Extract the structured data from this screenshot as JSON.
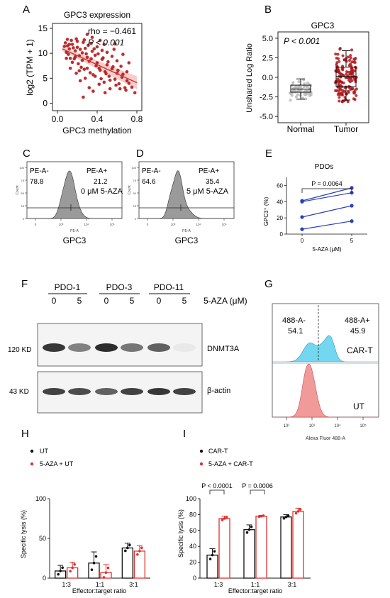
{
  "panels": {
    "A": {
      "letter": "A",
      "title": "GPC3 expression",
      "xlabel": "GPC3 methylation",
      "ylabel": "log2 (TPM + 1)",
      "rho": "rho = −0.461",
      "p": "P < 0.001",
      "xticks": [
        "0.0",
        "0.4",
        "0.8"
      ],
      "yticks": [
        "0",
        "5",
        "10",
        "15"
      ],
      "colors": {
        "points": "#b2181b",
        "fit": "#c0392b",
        "band": "#f2b6b6"
      },
      "chart_data": {
        "type": "scatter",
        "xlim": [
          -0.05,
          0.85
        ],
        "ylim": [
          -1.5,
          16
        ],
        "fit_line": {
          "x": [
            0.05,
            0.8
          ],
          "y": [
            10.9,
            4.1
          ]
        },
        "points": [
          [
            0.08,
            12.1
          ],
          [
            0.1,
            11.5
          ],
          [
            0.12,
            10.9
          ],
          [
            0.09,
            10.2
          ],
          [
            0.15,
            11.8
          ],
          [
            0.18,
            10.5
          ],
          [
            0.11,
            9.8
          ],
          [
            0.2,
            11.2
          ],
          [
            0.22,
            9.5
          ],
          [
            0.14,
            12.6
          ],
          [
            0.25,
            10.1
          ],
          [
            0.17,
            8.9
          ],
          [
            0.28,
            11.0
          ],
          [
            0.3,
            9.2
          ],
          [
            0.13,
            9.0
          ],
          [
            0.32,
            8.4
          ],
          [
            0.35,
            10.4
          ],
          [
            0.21,
            7.9
          ],
          [
            0.38,
            9.6
          ],
          [
            0.4,
            8.1
          ],
          [
            0.24,
            7.2
          ],
          [
            0.42,
            7.0
          ],
          [
            0.45,
            8.8
          ],
          [
            0.27,
            6.8
          ],
          [
            0.48,
            6.3
          ],
          [
            0.5,
            7.7
          ],
          [
            0.33,
            6.1
          ],
          [
            0.52,
            5.4
          ],
          [
            0.55,
            6.9
          ],
          [
            0.36,
            5.7
          ],
          [
            0.58,
            4.8
          ],
          [
            0.6,
            6.0
          ],
          [
            0.44,
            4.9
          ],
          [
            0.62,
            3.9
          ],
          [
            0.65,
            5.2
          ],
          [
            0.47,
            4.2
          ],
          [
            0.68,
            3.1
          ],
          [
            0.7,
            4.5
          ],
          [
            0.78,
            2.1
          ],
          [
            0.16,
            11.1
          ],
          [
            0.19,
            12.9
          ],
          [
            0.23,
            10.8
          ],
          [
            0.26,
            12.2
          ],
          [
            0.29,
            9.9
          ],
          [
            0.31,
            11.6
          ],
          [
            0.34,
            8.9
          ],
          [
            0.37,
            10.9
          ],
          [
            0.39,
            7.5
          ],
          [
            0.41,
            9.9
          ],
          [
            0.43,
            6.6
          ],
          [
            0.46,
            9.1
          ],
          [
            0.49,
            5.9
          ],
          [
            0.51,
            8.3
          ],
          [
            0.53,
            4.6
          ],
          [
            0.56,
            7.3
          ],
          [
            0.59,
            3.6
          ],
          [
            0.61,
            6.6
          ],
          [
            0.63,
            2.9
          ],
          [
            0.66,
            5.8
          ],
          [
            0.69,
            2.6
          ],
          [
            0.72,
            4.0
          ],
          [
            0.12,
            11.8
          ],
          [
            0.1,
            12.8
          ],
          [
            0.07,
            11.4
          ],
          [
            0.2,
            12.4
          ],
          [
            0.27,
            12.7
          ],
          [
            0.18,
            9.3
          ],
          [
            0.25,
            8.6
          ],
          [
            0.34,
            12.0
          ],
          [
            0.4,
            11.3
          ],
          [
            0.3,
            7.0
          ],
          [
            0.22,
            6.5
          ],
          [
            0.45,
            10.6
          ],
          [
            0.55,
            9.4
          ],
          [
            0.6,
            8.5
          ],
          [
            0.5,
            10.2
          ],
          [
            0.38,
            5.4
          ],
          [
            0.28,
            5.0
          ],
          [
            0.42,
            3.8
          ],
          [
            0.53,
            2.9
          ],
          [
            0.64,
            7.4
          ],
          [
            0.7,
            6.3
          ],
          [
            0.75,
            3.2
          ],
          [
            0.15,
            8.2
          ],
          [
            0.32,
            3.1
          ],
          [
            0.47,
            11.8
          ],
          [
            0.57,
            10.8
          ],
          [
            0.19,
            6.0
          ],
          [
            0.23,
            4.5
          ],
          [
            0.36,
            2.4
          ],
          [
            0.26,
            1.2
          ],
          [
            0.13,
            7.0
          ],
          [
            0.09,
            9.0
          ],
          [
            0.35,
            13.2
          ],
          [
            0.43,
            12.6
          ],
          [
            0.58,
            11.9
          ],
          [
            0.66,
            9.8
          ],
          [
            0.72,
            8.1
          ],
          [
            0.48,
            2.1
          ],
          [
            0.3,
            13.8
          ]
        ]
      }
    },
    "B": {
      "letter": "B",
      "title": "GPC3",
      "p": "P < 0.001",
      "ylabel": "Unshared Log Ratio",
      "categories": [
        "Normal",
        "Tumor"
      ],
      "yticks": [
        "5.0",
        "2.5",
        "0.0",
        "-2.5",
        "-5.0"
      ],
      "colors": {
        "normal": "#b8b8b8",
        "tumor": "#b2181b"
      },
      "chart_data": {
        "type": "box",
        "categories": [
          "Normal",
          "Tumor"
        ],
        "ylim": [
          -5.8,
          5.8
        ],
        "boxes": [
          {
            "name": "Normal",
            "q1": -1.9,
            "median": -1.5,
            "q3": -1.0,
            "whisker_low": -2.8,
            "whisker_high": -0.2
          },
          {
            "name": "Tumor",
            "q1": -1.2,
            "median": 0.1,
            "q3": 1.3,
            "whisker_low": -2.9,
            "whisker_high": 3.4
          }
        ]
      }
    },
    "C": {
      "letter": "C",
      "gate_left": "PE-A-",
      "gate_right": "PE-A+",
      "val_left": "78.8",
      "val_right": "21.2",
      "treatment": "0 μM 5-AZA",
      "xlabel": "GPC3",
      "axis_label": "PE-A",
      "count_label": "Count",
      "yticks": [
        "0",
        "25",
        "50",
        "75",
        "100"
      ],
      "xticks": [
        "0",
        "10³",
        "10⁴",
        "10⁵"
      ]
    },
    "D": {
      "letter": "D",
      "gate_left": "PE-A-",
      "gate_right": "PE-A+",
      "val_left": "64.6",
      "val_right": "35.4",
      "treatment": "5 μM 5-AZA",
      "xlabel": "GPC3",
      "axis_label": "PE-A",
      "count_label": "Count",
      "yticks": [
        "0",
        "25",
        "50",
        "75",
        "100"
      ],
      "xticks": [
        "0",
        "10³",
        "10⁴",
        "10⁵"
      ]
    },
    "E": {
      "letter": "E",
      "title": "PDOs",
      "p": "P = 0.0064",
      "ylabel": "GPC3⁺ (%)",
      "xlabel": "5-AZA (μM)",
      "xticks": [
        "0",
        "5"
      ],
      "yticks": [
        "0",
        "20",
        "40",
        "60"
      ],
      "colors": {
        "line": "#2a3fbf"
      },
      "chart_data": {
        "type": "line",
        "x": [
          "0",
          "5"
        ],
        "ylim": [
          0,
          70
        ],
        "series": [
          {
            "values": [
              41,
              57
            ]
          },
          {
            "values": [
              40,
              51
            ]
          },
          {
            "values": [
              21,
              35
            ]
          },
          {
            "values": [
              6,
              16
            ]
          }
        ]
      }
    },
    "F": {
      "letter": "F",
      "groups": [
        "PDO-1",
        "PDO-3",
        "PDO-11"
      ],
      "doses": [
        "0",
        "5",
        "0",
        "5",
        "0",
        "5"
      ],
      "treatment": "5-AZA (μM)",
      "bands": [
        {
          "kd": "120 KD",
          "protein": "DNMT3A"
        },
        {
          "kd": "43 KD",
          "protein": "β-actin"
        }
      ]
    },
    "G": {
      "letter": "G",
      "gate_left": "488-A-",
      "val_left": "54.1",
      "gate_right": "488-A+",
      "val_right": "45.9",
      "top_label": "CAR-T",
      "bottom_label": "UT",
      "xlabel": "Alexa Fluor 488-A",
      "colors": {
        "cart": "#5bd0ec",
        "ut": "#ee8f8f"
      }
    },
    "H": {
      "letter": "H",
      "legend": [
        "UT",
        "5-AZA + UT"
      ],
      "ylabel": "Specific lysis (%)",
      "xlabel": "Effector:target ratio",
      "yticks": [
        "0",
        "50",
        "100"
      ],
      "categories": [
        "1:3",
        "1:1",
        "3:1"
      ],
      "colors": {
        "ut": "#111111",
        "aza": "#e0302f"
      },
      "chart_data": {
        "type": "bar",
        "categories": [
          "1:3",
          "1:1",
          "3:1"
        ],
        "ylim": [
          0,
          100
        ],
        "series": [
          {
            "name": "UT",
            "values": [
              9,
              19,
              38
            ],
            "errors": [
              7,
              14,
              6
            ]
          },
          {
            "name": "5-AZA + UT",
            "values": [
              13,
              7,
              34
            ],
            "errors": [
              7,
              10,
              7
            ]
          }
        ]
      }
    },
    "I": {
      "letter": "I",
      "legend": [
        "CAR-T",
        "5-AZA + CAR-T"
      ],
      "ylabel": "Specific lysis (%)",
      "xlabel": "Effector:target ratio",
      "yticks": [
        "0",
        "20",
        "40",
        "60",
        "80",
        "100"
      ],
      "categories": [
        "1:3",
        "1:1",
        "3:1"
      ],
      "p_values": [
        "P < 0.0001",
        "P = 0.0006"
      ],
      "colors": {
        "cart": "#111111",
        "aza": "#e0302f"
      },
      "chart_data": {
        "type": "bar",
        "categories": [
          "1:3",
          "1:1",
          "3:1"
        ],
        "ylim": [
          0,
          100
        ],
        "series": [
          {
            "name": "CAR-T",
            "values": [
              29,
              61,
              77
            ],
            "errors": [
              8,
              6,
              3
            ]
          },
          {
            "name": "5-AZA + CAR-T",
            "values": [
              75,
              78,
              84
            ],
            "errors": [
              3,
              1,
              4
            ]
          }
        ]
      }
    }
  }
}
